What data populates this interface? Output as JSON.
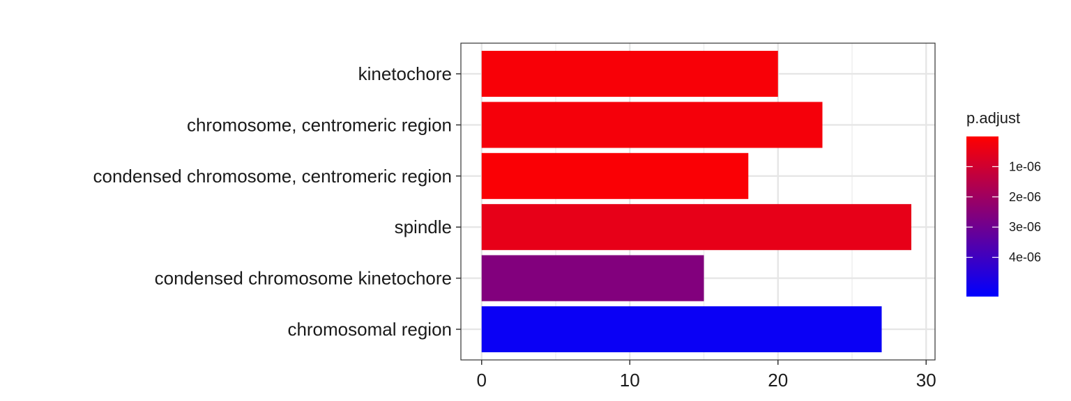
{
  "chart_data": {
    "type": "bar",
    "orientation": "horizontal",
    "categories": [
      "kinetochore",
      "chromosome, centromeric region",
      "condensed chromosome, centromeric region",
      "spindle",
      "condensed chromosome kinetochore",
      "chromosomal region"
    ],
    "values": [
      20,
      23,
      18,
      29,
      15,
      27
    ],
    "p_adjust": [
      1.5e-07,
      2e-07,
      1e-07,
      5e-07,
      2.6e-06,
      5.1e-06
    ],
    "title": "",
    "xlabel": "",
    "ylabel": "",
    "xlim": [
      -1.4,
      30.6
    ],
    "x_ticks": [
      0,
      10,
      20,
      30
    ],
    "x_tick_labels": [
      "0",
      "10",
      "20",
      "30"
    ],
    "grid": true,
    "legend": {
      "title": "p.adjust",
      "position": "right",
      "range": [
        0,
        5.3e-06
      ],
      "ticks": [
        1e-06,
        2e-06,
        3e-06,
        4e-06
      ],
      "tick_labels": [
        "1e-06",
        "2e-06",
        "3e-06",
        "4e-06"
      ],
      "color_low": "#FF0000",
      "color_high": "#0000FF"
    }
  }
}
